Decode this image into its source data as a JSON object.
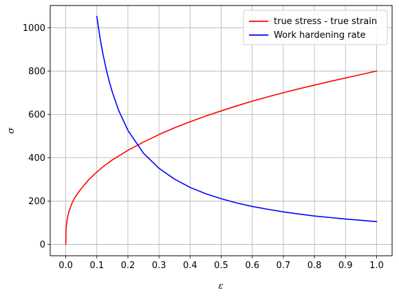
{
  "chart_data": {
    "type": "line",
    "title": "",
    "xlabel": "ε",
    "ylabel": "σ",
    "xlim": [
      -0.05,
      1.05
    ],
    "ylim": [
      -52.5,
      1102.5
    ],
    "xticks": [
      0.0,
      0.1,
      0.2,
      0.3,
      0.4,
      0.5,
      0.6,
      0.7,
      0.8,
      0.9,
      1.0
    ],
    "xtick_labels": [
      "0.0",
      "0.1",
      "0.2",
      "0.3",
      "0.4",
      "0.5",
      "0.6",
      "0.7",
      "0.8",
      "0.9",
      "1.0"
    ],
    "yticks": [
      0,
      200,
      400,
      600,
      800,
      1000
    ],
    "ytick_labels": [
      "0",
      "200",
      "400",
      "600",
      "800",
      "1000"
    ],
    "grid": true,
    "legend_position": "top-right",
    "series": [
      {
        "name": "true stress - true strain",
        "color": "#ff0000",
        "x": [
          0.0,
          0.001,
          0.002,
          0.005,
          0.01,
          0.02,
          0.03,
          0.05,
          0.075,
          0.1,
          0.125,
          0.15,
          0.2,
          0.25,
          0.3,
          0.35,
          0.4,
          0.45,
          0.5,
          0.55,
          0.6,
          0.65,
          0.7,
          0.75,
          0.8,
          0.85,
          0.9,
          0.95,
          1.0
        ],
        "y": [
          0,
          70,
          88,
          120,
          151,
          190,
          218,
          258,
          300,
          334,
          364,
          390,
          434,
          472,
          507,
          538,
          566,
          592,
          616,
          639,
          661,
          681,
          700,
          718,
          735,
          752,
          768,
          784,
          800
        ]
      },
      {
        "name": "Work hardening rate",
        "color": "#0000ff",
        "x": [
          0.1,
          0.11,
          0.12,
          0.13,
          0.14,
          0.15,
          0.17,
          0.2,
          0.25,
          0.3,
          0.35,
          0.4,
          0.45,
          0.5,
          0.55,
          0.6,
          0.65,
          0.7,
          0.75,
          0.8,
          0.85,
          0.9,
          0.95,
          1.0
        ],
        "y": [
          1052,
          954,
          876,
          809,
          751,
          702,
          619,
          526,
          421,
          351,
          301,
          263,
          234,
          211,
          191,
          175,
          162,
          150,
          140,
          131,
          124,
          117,
          111,
          105
        ]
      }
    ]
  }
}
